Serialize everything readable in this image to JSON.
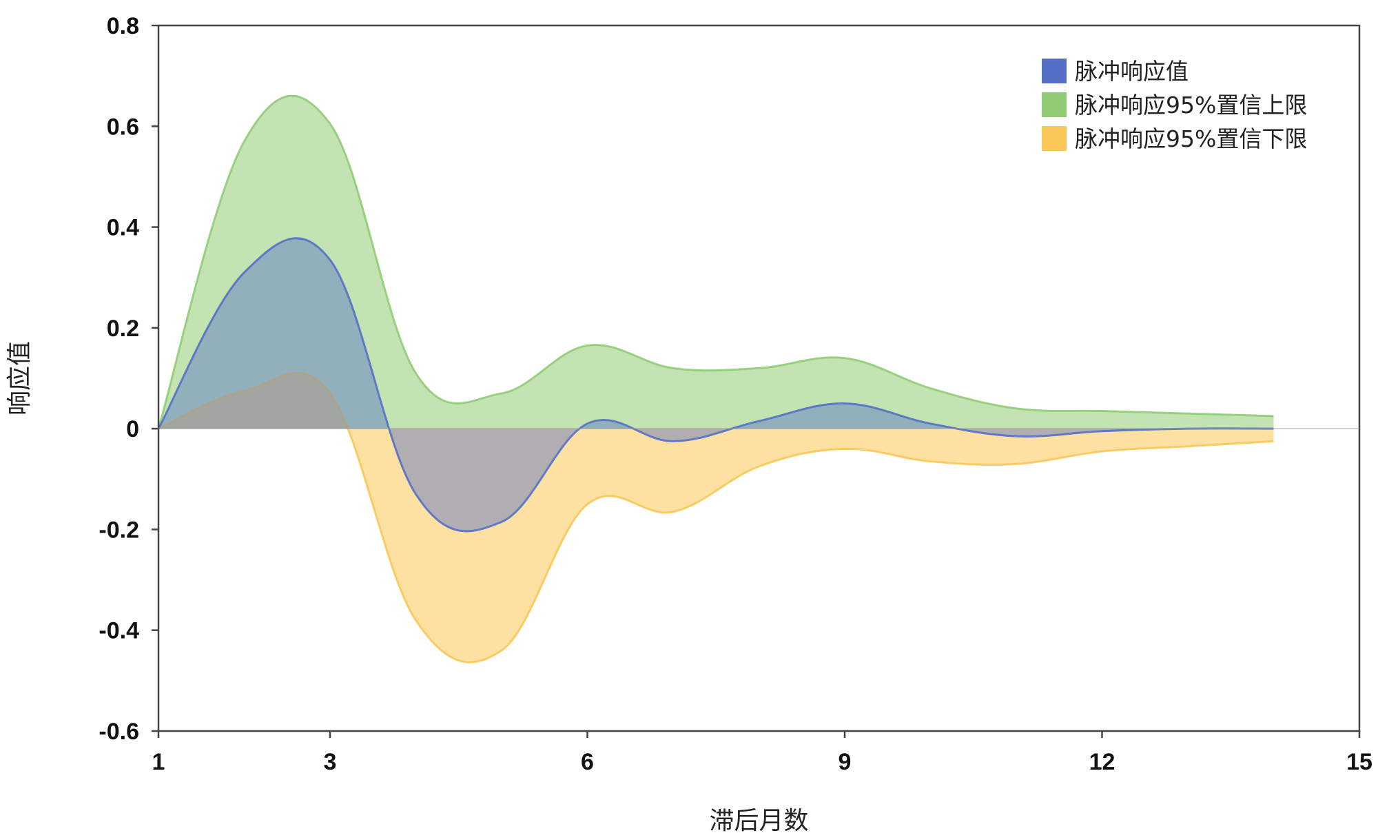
{
  "chart_data": {
    "type": "area",
    "title": "",
    "xlabel": "滞后月数",
    "ylabel": "响应值",
    "xlim": [
      1,
      15
    ],
    "ylim": [
      -0.6,
      0.8
    ],
    "xticks": [
      1,
      3,
      6,
      9,
      12,
      15
    ],
    "xtick_labels": [
      "1",
      "3",
      "6",
      "9",
      "12",
      "15"
    ],
    "yticks": [
      0.8,
      0.6,
      0.4,
      0.2,
      0,
      -0.2,
      -0.4,
      -0.6
    ],
    "ytick_labels": [
      "0.8",
      "0.6",
      "0.4",
      "0.2",
      "0",
      "-0.2",
      "-0.4",
      "-0.6"
    ],
    "grid": false,
    "legend_position": "top-right",
    "x": [
      1,
      2,
      3,
      4,
      5,
      6,
      7,
      8,
      9,
      10,
      11,
      12,
      13,
      14
    ],
    "series": [
      {
        "name": "脉冲响应值",
        "color": "#5470c6",
        "values": [
          0.0,
          0.31,
          0.335,
          -0.13,
          -0.185,
          0.01,
          -0.025,
          0.015,
          0.05,
          0.01,
          -0.015,
          -0.005,
          0.0,
          0.0
        ]
      },
      {
        "name": "脉冲响应95%置信上限",
        "color": "#91cc75",
        "values": [
          0.0,
          0.57,
          0.605,
          0.11,
          0.07,
          0.165,
          0.12,
          0.12,
          0.14,
          0.08,
          0.04,
          0.035,
          0.03,
          0.025
        ]
      },
      {
        "name": "脉冲响应95%置信下限",
        "color": "#fac858",
        "values": [
          0.0,
          0.075,
          0.07,
          -0.38,
          -0.44,
          -0.15,
          -0.165,
          -0.075,
          -0.04,
          -0.065,
          -0.07,
          -0.045,
          -0.035,
          -0.025
        ]
      }
    ]
  }
}
